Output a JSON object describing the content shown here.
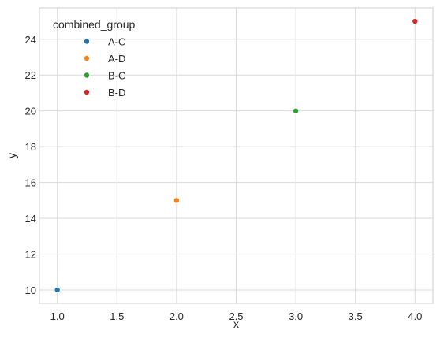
{
  "chart_data": {
    "type": "scatter",
    "xlabel": "x",
    "ylabel": "y",
    "xlim": [
      0.85,
      4.15
    ],
    "ylim": [
      9.25,
      25.75
    ],
    "xticks": [
      1.0,
      1.5,
      2.0,
      2.5,
      3.0,
      3.5,
      4.0
    ],
    "xtick_labels": [
      "1.0",
      "1.5",
      "2.0",
      "2.5",
      "3.0",
      "3.5",
      "4.0"
    ],
    "yticks": [
      10,
      12,
      14,
      16,
      18,
      20,
      22,
      24
    ],
    "ytick_labels": [
      "10",
      "12",
      "14",
      "16",
      "18",
      "20",
      "22",
      "24"
    ],
    "grid": true,
    "legend": {
      "title": "combined_group",
      "placement": "top-left"
    },
    "series": [
      {
        "name": "A-C",
        "color": "#1f77b4",
        "points": [
          {
            "x": 1,
            "y": 10
          }
        ]
      },
      {
        "name": "A-D",
        "color": "#ff7f0e",
        "points": [
          {
            "x": 2,
            "y": 15
          }
        ]
      },
      {
        "name": "B-C",
        "color": "#2ca02c",
        "points": [
          {
            "x": 3,
            "y": 20
          }
        ]
      },
      {
        "name": "B-D",
        "color": "#d62728",
        "points": [
          {
            "x": 4,
            "y": 25
          }
        ]
      }
    ]
  }
}
